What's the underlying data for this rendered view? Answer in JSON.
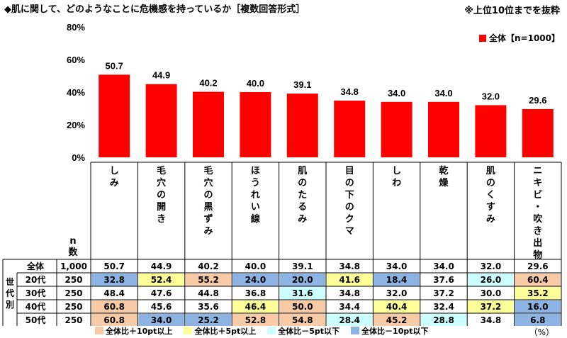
{
  "title": "◆肌に関して、どのようなことに危機感を持っているか［複数回答形式］",
  "note": "※上位10位までを抜粋",
  "colors": {
    "bar": "#ff0000",
    "plus10": "#f8cba6",
    "plus5": "#ffff99",
    "minus5": "#ccffff",
    "minus10": "#8db3e2"
  },
  "chart_data": {
    "type": "bar",
    "categories": [
      "しみ",
      "毛穴の開き",
      "毛穴の黒ずみ",
      "ほうれい線",
      "肌のたるみ",
      "目の下のクマ",
      "しわ",
      "乾燥",
      "肌のくすみ",
      "ニキビ・吹き出物"
    ],
    "series": [
      {
        "name": "全体【n=1000】",
        "values": [
          50.7,
          44.9,
          40.2,
          40.0,
          39.1,
          34.8,
          34.0,
          34.0,
          32.0,
          29.6
        ]
      }
    ],
    "ylim": [
      0,
      80
    ],
    "yticks": [
      "0%",
      "20%",
      "40%",
      "60%",
      "80%"
    ],
    "legend_position": "top-right"
  },
  "table": {
    "n_header": "n\n数",
    "group_label": "世\n代\n別",
    "rows": [
      {
        "label": "全体",
        "n": "1,000",
        "values": [
          "50.7",
          "44.9",
          "40.2",
          "40.0",
          "39.1",
          "34.8",
          "34.0",
          "34.0",
          "32.0",
          "29.6"
        ],
        "hl": [
          "",
          "",
          "",
          "",
          "",
          "",
          "",
          "",
          "",
          ""
        ]
      },
      {
        "label": "20代",
        "n": "250",
        "values": [
          "32.8",
          "52.4",
          "55.2",
          "24.0",
          "20.0",
          "41.6",
          "18.4",
          "37.6",
          "26.0",
          "60.4"
        ],
        "hl": [
          "m10",
          "p5",
          "p10",
          "m10",
          "m10",
          "p5",
          "m10",
          "",
          "m5",
          "p10"
        ]
      },
      {
        "label": "30代",
        "n": "250",
        "values": [
          "48.4",
          "47.6",
          "44.8",
          "36.8",
          "31.6",
          "34.8",
          "32.0",
          "37.2",
          "30.0",
          "35.2"
        ],
        "hl": [
          "",
          "",
          "",
          "",
          "m5",
          "",
          "",
          "",
          "",
          "p5"
        ]
      },
      {
        "label": "40代",
        "n": "250",
        "values": [
          "60.8",
          "45.6",
          "35.6",
          "46.4",
          "50.0",
          "34.4",
          "40.4",
          "32.4",
          "37.2",
          "16.0"
        ],
        "hl": [
          "p10",
          "",
          "",
          "p5",
          "p10",
          "",
          "p5",
          "",
          "p5",
          "m10"
        ]
      },
      {
        "label": "50代",
        "n": "250",
        "values": [
          "60.8",
          "34.0",
          "25.2",
          "52.8",
          "54.8",
          "28.4",
          "45.2",
          "28.8",
          "34.8",
          "6.8"
        ],
        "hl": [
          "p10",
          "m10",
          "m10",
          "p10",
          "p10",
          "m5",
          "p10",
          "m5",
          "",
          "m10"
        ]
      }
    ]
  },
  "legend": {
    "plus10": "全体比＋10pt以上",
    "plus5": "全体比＋5pt以上",
    "minus5": "全体比－5pt以下",
    "minus10": "全体比－10pt以下"
  },
  "unit": "（%）"
}
